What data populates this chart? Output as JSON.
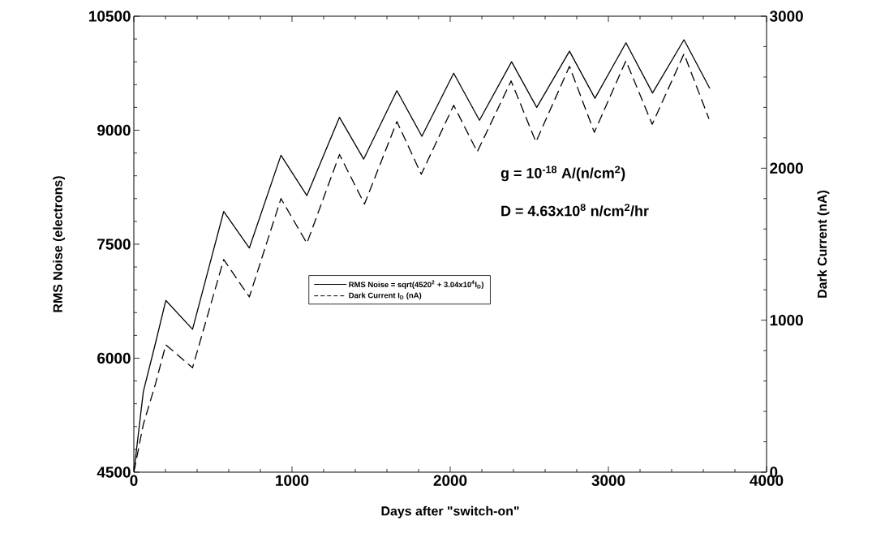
{
  "chart_data": {
    "type": "line",
    "xlabel": "Days after \"switch-on\"",
    "ylabel": "RMS Noise (electrons)",
    "y2label": "Dark Current (nA)",
    "xlim": [
      0,
      4000
    ],
    "xticks": [
      0,
      1000,
      2000,
      3000,
      4000
    ],
    "ylim": [
      4500,
      10500
    ],
    "yticks": [
      4500,
      6000,
      7500,
      9000,
      10500
    ],
    "y2lim": [
      0,
      3000
    ],
    "y2ticks": [
      0,
      1000,
      2000,
      3000
    ],
    "grid": false,
    "legend": "center",
    "marker": "none",
    "annotations": [
      "g = 10$^{-18}$ A/(n/cm$^{2}$)",
      "D = 4.63x10$^{8}$ n/cm$^{2}$/hr"
    ],
    "series": [
      {
        "name": "RMS Noise = sqrt(4520$^{2}$ + 3.04x10$^{4}$I$_{D}$)",
        "color": "#000000",
        "line_style": "solid",
        "x": [
          0,
          60,
          137,
          202,
          371,
          568,
          730,
          930,
          1094,
          1300,
          1453,
          1663,
          1821,
          2022,
          2185,
          2388,
          2547,
          2754,
          2915,
          3111,
          3279,
          3478,
          3641
        ],
        "values": [
          4500,
          5560,
          6200,
          6760,
          6380,
          7930,
          7450,
          8670,
          8140,
          9170,
          8620,
          9520,
          8920,
          9750,
          9130,
          9900,
          9300,
          10040,
          9420,
          10150,
          9490,
          10190,
          9550
        ]
      },
      {
        "name": "Dark Current  I$_{D}$ (nA)",
        "color": "#000000",
        "line_style": "dashed",
        "axis": "y2",
        "x": [
          0,
          60,
          137,
          202,
          371,
          568,
          730,
          930,
          1094,
          1300,
          1458,
          1663,
          1817,
          2022,
          2171,
          2385,
          2542,
          2754,
          2911,
          3111,
          3277,
          3478,
          3636
        ],
        "values": [
          0,
          315,
          582,
          838,
          687,
          1399,
          1153,
          1800,
          1506,
          2090,
          1764,
          2307,
          1960,
          2414,
          2108,
          2574,
          2173,
          2670,
          2236,
          2707,
          2289,
          2752,
          2325
        ]
      }
    ]
  }
}
